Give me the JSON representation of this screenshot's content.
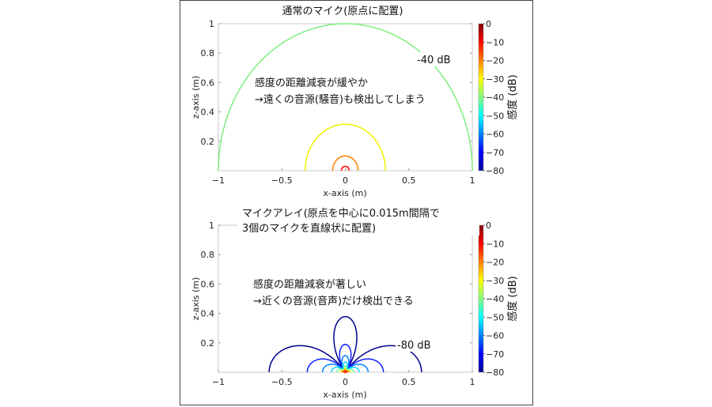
{
  "chart_data": [
    {
      "type": "line",
      "subtype": "contour",
      "title": "通常のマイク(原点に配置)",
      "xlabel": "x-axis (m)",
      "ylabel": "z-axis (m)",
      "xlim": [
        -1,
        1
      ],
      "ylim": [
        0,
        1
      ],
      "xticks": [
        "-1",
        "-0.5",
        "0",
        "0.5",
        "1"
      ],
      "yticks": [
        "0.2",
        "0.4",
        "0.6",
        "0.8",
        "1"
      ],
      "annotation": [
        "感度の距離減衰が緩やか",
        "→遠くの音源(騒音)も検出してしまう"
      ],
      "contour_label": "-40 dB",
      "pattern": "omni",
      "levels": [
        {
          "db": -40,
          "radius": 1.0,
          "color": "#7cf07c"
        },
        {
          "db": -30,
          "radius": 0.316,
          "color": "#f2f000"
        },
        {
          "db": -20,
          "radius": 0.1,
          "color": "#ff8000"
        },
        {
          "db": -10,
          "radius": 0.03,
          "color": "#ff2020"
        }
      ],
      "colorbar": {
        "label": "感度 (dB)",
        "ticks": [
          "0",
          "-10",
          "-20",
          "-30",
          "-40",
          "-50",
          "-60",
          "-70",
          "-80"
        ],
        "range": [
          -80,
          0
        ]
      }
    },
    {
      "type": "line",
      "subtype": "contour",
      "title": [
        "マイクアレイ(原点を中心に0.015m間隔で",
        "3個のマイクを直線状に配置)"
      ],
      "xlabel": "x-axis (m)",
      "ylabel": "z-axis (m)",
      "xlim": [
        -1,
        1
      ],
      "ylim": [
        0,
        1
      ],
      "xticks": [
        "-1",
        "-0.5",
        "0",
        "0.5",
        "1"
      ],
      "yticks": [
        "0.2",
        "0.4",
        "0.6",
        "0.8",
        "1"
      ],
      "annotation": [
        "感度の距離減衰が著しい",
        "→近くの音源(音声)だけ検出できる"
      ],
      "contour_label": "-80 dB",
      "pattern": "three-lobe",
      "levels": [
        {
          "db": -80,
          "radius": 0.6,
          "color": "#00008f"
        },
        {
          "db": -70,
          "radius": 0.3,
          "color": "#1020ff"
        },
        {
          "db": -60,
          "radius": 0.18,
          "color": "#0080ff"
        },
        {
          "db": -50,
          "radius": 0.11,
          "color": "#10d8ff"
        },
        {
          "db": -40,
          "radius": 0.068,
          "color": "#70ffa0"
        },
        {
          "db": -30,
          "radius": 0.042,
          "color": "#e8ff20"
        },
        {
          "db": -20,
          "radius": 0.026,
          "color": "#ff9000"
        },
        {
          "db": -10,
          "radius": 0.015,
          "color": "#ff2000"
        }
      ],
      "colorbar": {
        "label": "感度 (dB)",
        "ticks": [
          "0",
          "-10",
          "-20",
          "-30",
          "-40",
          "-50",
          "-60",
          "-70",
          "-80"
        ],
        "range": [
          -80,
          0
        ]
      }
    }
  ]
}
